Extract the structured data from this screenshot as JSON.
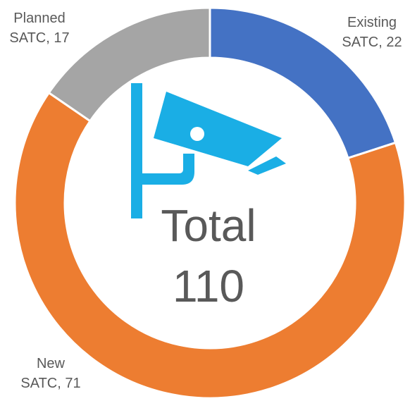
{
  "chart_data": {
    "type": "pie",
    "values": [
      22,
      71,
      17
    ],
    "value_labels": [
      "Existing SATC, 22",
      "New SATC, 71",
      "Planned SATC, 17"
    ],
    "colors": [
      "#4472c4",
      "#ed7d31",
      "#a5a5a5"
    ],
    "center_label": "Total",
    "total": 110
  }
}
